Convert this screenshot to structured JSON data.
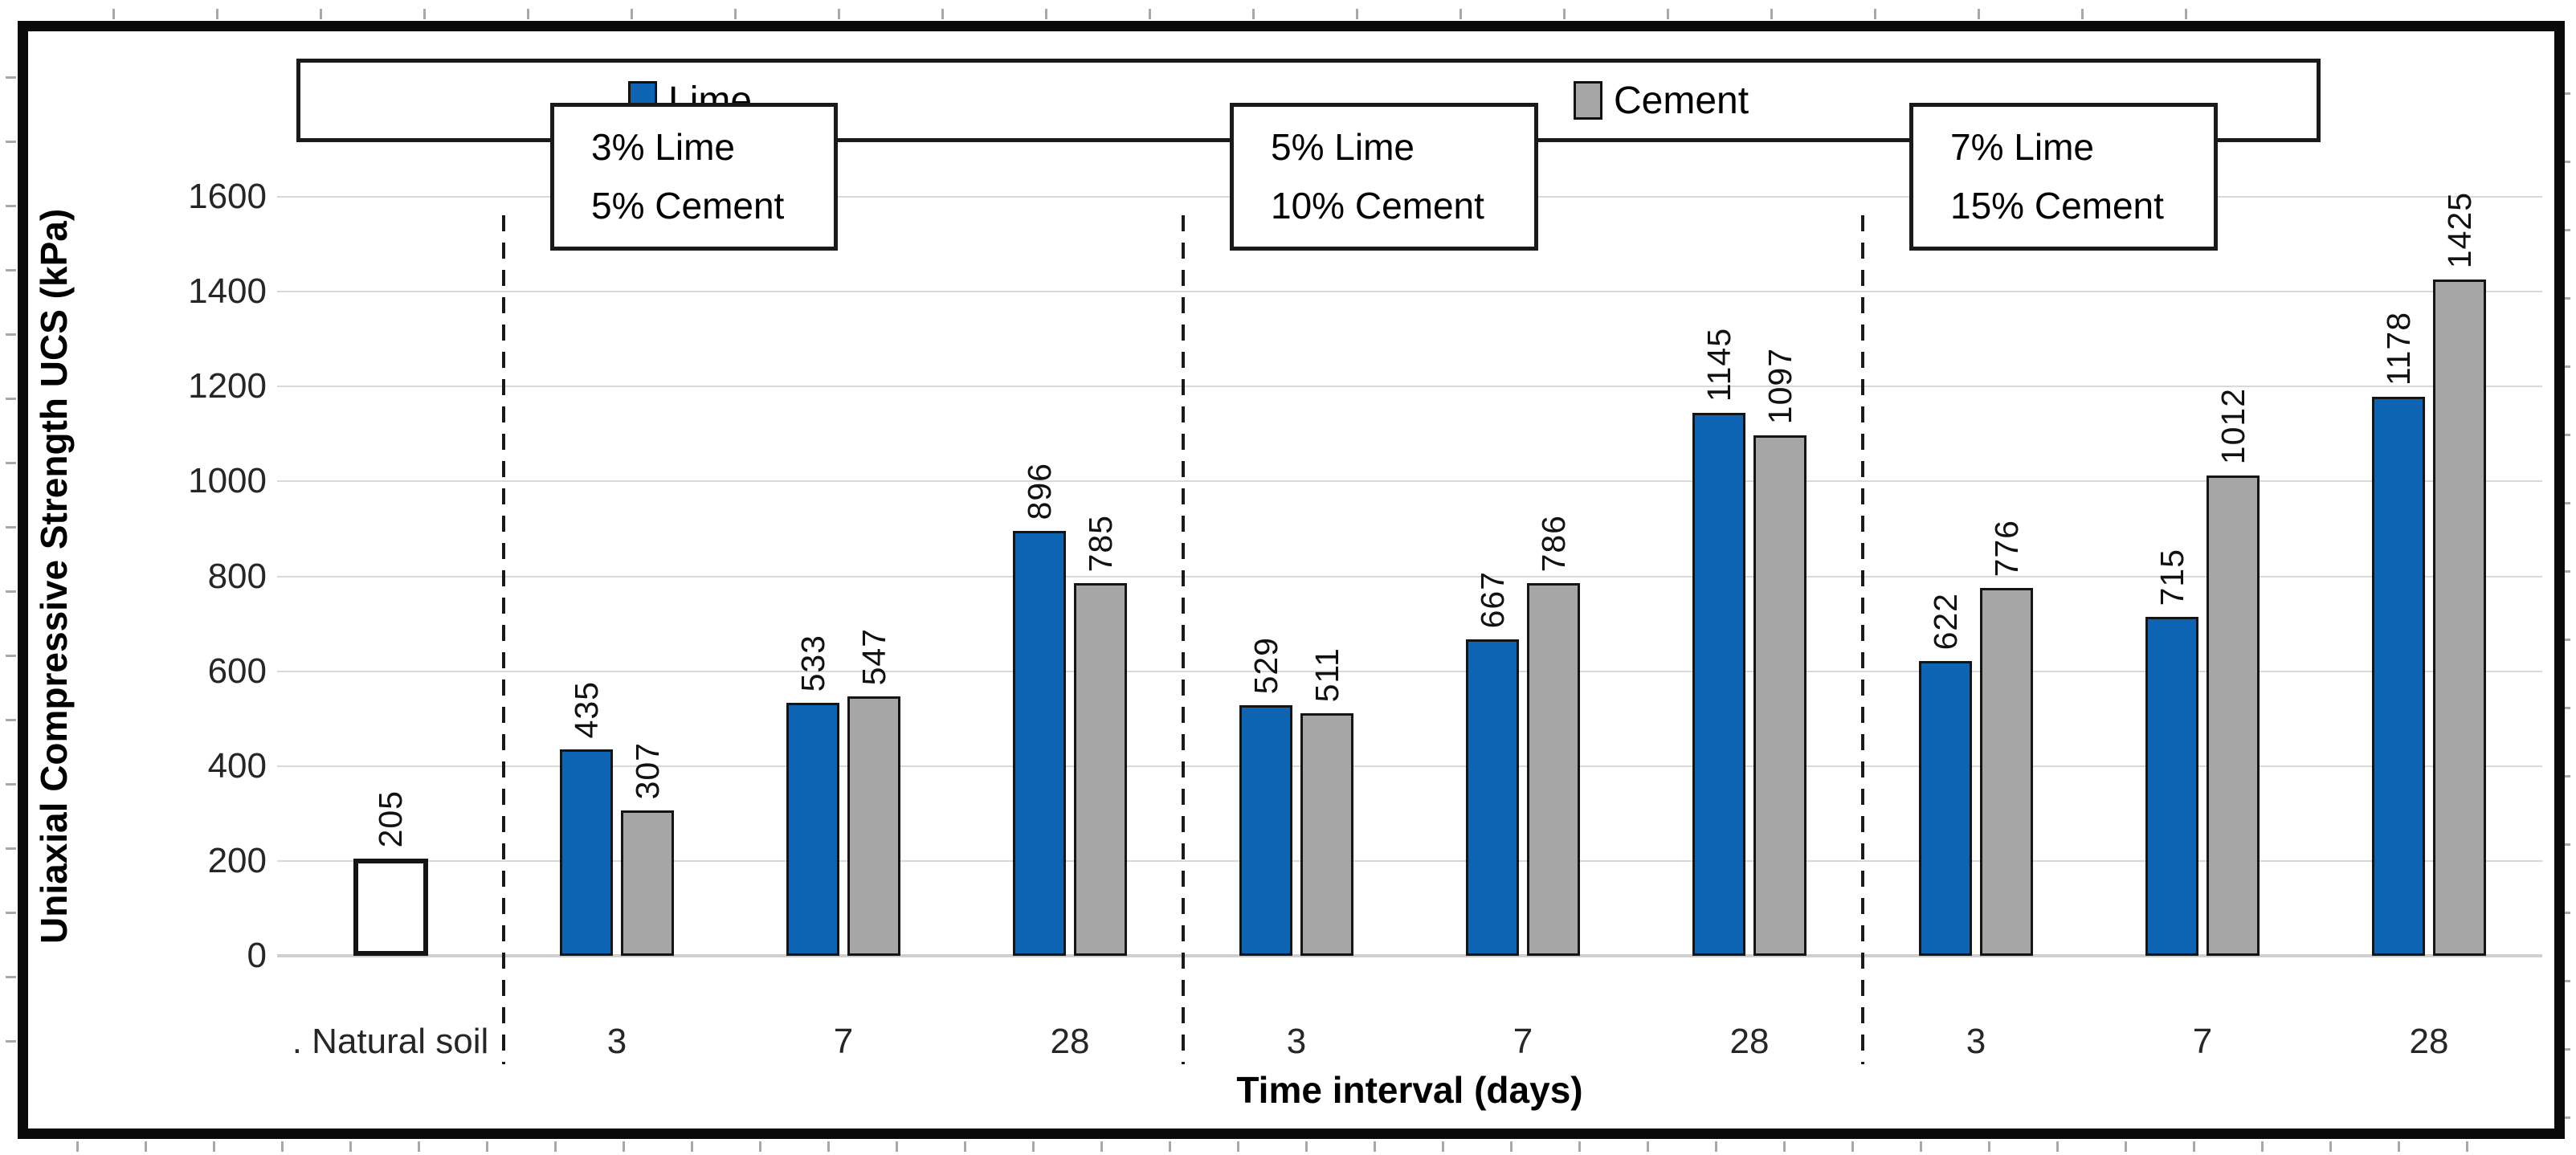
{
  "chart_data": {
    "type": "bar",
    "title": "",
    "ylabel": "Uniaxial Compressive Strength UCS (kPa)",
    "xlabel": "Time interval (days)",
    "ylim": [
      0,
      1600
    ],
    "y_ticks": [
      0,
      200,
      400,
      600,
      800,
      1000,
      1200,
      1400,
      1600
    ],
    "grid": true,
    "legend_position": "top",
    "baseline_category": {
      "label": ". Natural soil",
      "value": 205,
      "fill": "#ffffff"
    },
    "day_categories": [
      "3",
      "7",
      "28"
    ],
    "groups": [
      {
        "label_lines": [
          "3% Lime",
          "5% Cement"
        ],
        "lime": [
          435,
          533,
          896
        ],
        "cement": [
          307,
          547,
          785
        ]
      },
      {
        "label_lines": [
          "5% Lime",
          "10% Cement"
        ],
        "lime": [
          529,
          667,
          1145
        ],
        "cement": [
          511,
          786,
          1097
        ]
      },
      {
        "label_lines": [
          "7% Lime",
          "15% Cement"
        ],
        "lime": [
          622,
          715,
          1178
        ],
        "cement": [
          776,
          1012,
          1425
        ]
      }
    ],
    "series": [
      {
        "name": "Lime",
        "color": "#0d64b2",
        "values": [
          435,
          533,
          896,
          529,
          667,
          1145,
          622,
          715,
          1178
        ]
      },
      {
        "name": "Cement",
        "color": "#a6a6a6",
        "values": [
          307,
          547,
          785,
          511,
          786,
          1097,
          776,
          1012,
          1425
        ]
      }
    ],
    "colors": {
      "lime": "#0d64b2",
      "cement": "#a6a6a6",
      "bar_outline": "#141414",
      "gridline": "#d9d9d9",
      "axis_line": "#cfcfcf",
      "text": "#1a1a1a"
    }
  }
}
